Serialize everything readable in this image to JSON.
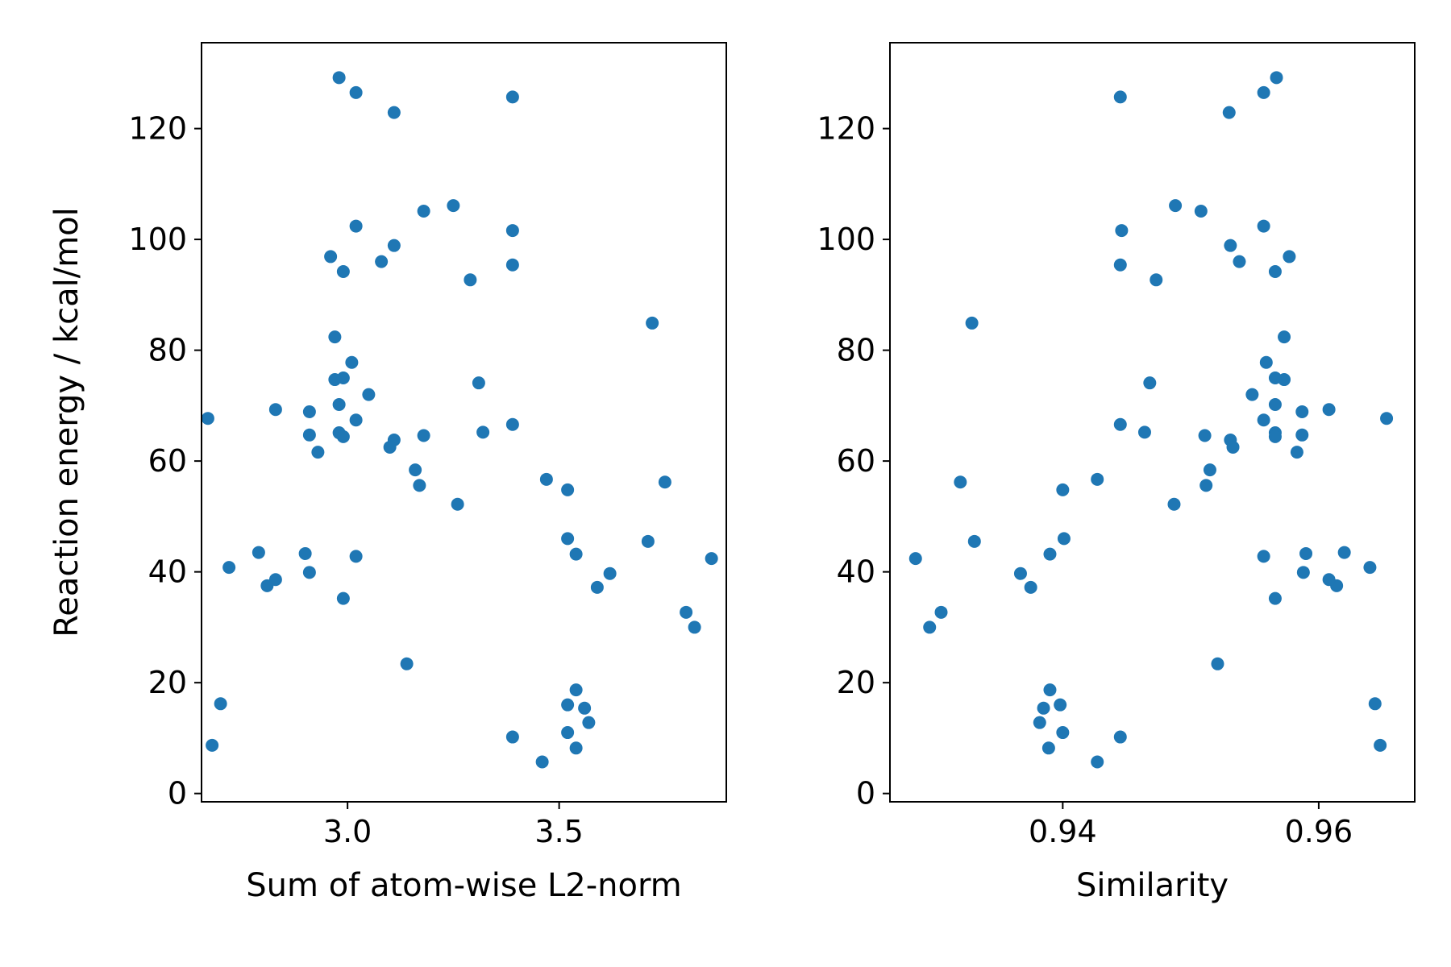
{
  "figure": {
    "background": "#ffffff",
    "point_color": "#1f77b4"
  },
  "chart_data": [
    {
      "type": "scatter",
      "title": "",
      "xlabel": "Sum of atom-wise L2-norm",
      "ylabel": "Reaction energy / kcal/mol",
      "xlim": [
        2.655,
        3.895
      ],
      "ylim": [
        -1.5,
        135.5
      ],
      "xticks": [
        3.0,
        3.5
      ],
      "xtick_labels": [
        "3.0",
        "3.5"
      ],
      "yticks": [
        0,
        20,
        40,
        60,
        80,
        100,
        120
      ],
      "ytick_labels": [
        "0",
        "20",
        "40",
        "60",
        "80",
        "100",
        "120"
      ],
      "grid": false,
      "legend": "none",
      "series": [
        {
          "points": [
            [
              2.98,
              129.2
            ],
            [
              3.02,
              126.5
            ],
            [
              3.11,
              122.9
            ],
            [
              3.39,
              125.7
            ],
            [
              3.18,
              105.1
            ],
            [
              3.25,
              106.1
            ],
            [
              3.02,
              102.4
            ],
            [
              3.39,
              101.6
            ],
            [
              3.11,
              98.9
            ],
            [
              2.96,
              96.9
            ],
            [
              3.08,
              96.0
            ],
            [
              2.99,
              94.2
            ],
            [
              3.39,
              95.4
            ],
            [
              3.29,
              92.7
            ],
            [
              3.72,
              84.9
            ],
            [
              2.97,
              82.4
            ],
            [
              3.01,
              77.8
            ],
            [
              2.97,
              74.7
            ],
            [
              2.99,
              75.0
            ],
            [
              3.31,
              74.1
            ],
            [
              3.05,
              72.0
            ],
            [
              2.98,
              70.2
            ],
            [
              2.67,
              67.7
            ],
            [
              2.83,
              69.3
            ],
            [
              2.91,
              68.9
            ],
            [
              3.02,
              67.4
            ],
            [
              3.39,
              66.6
            ],
            [
              2.91,
              64.7
            ],
            [
              2.98,
              65.1
            ],
            [
              2.99,
              64.4
            ],
            [
              3.11,
              63.8
            ],
            [
              3.18,
              64.6
            ],
            [
              3.32,
              65.2
            ],
            [
              2.93,
              61.6
            ],
            [
              3.1,
              62.5
            ],
            [
              3.16,
              58.4
            ],
            [
              3.17,
              55.6
            ],
            [
              3.47,
              56.7
            ],
            [
              3.52,
              54.8
            ],
            [
              3.75,
              56.2
            ],
            [
              3.26,
              52.2
            ],
            [
              3.52,
              46.0
            ],
            [
              3.71,
              45.5
            ],
            [
              3.54,
              43.2
            ],
            [
              2.79,
              43.5
            ],
            [
              2.9,
              43.3
            ],
            [
              3.02,
              42.8
            ],
            [
              3.86,
              42.4
            ],
            [
              2.72,
              40.8
            ],
            [
              2.91,
              39.9
            ],
            [
              3.62,
              39.7
            ],
            [
              2.81,
              37.5
            ],
            [
              2.83,
              38.6
            ],
            [
              3.59,
              37.2
            ],
            [
              2.99,
              35.2
            ],
            [
              3.8,
              32.7
            ],
            [
              3.82,
              30.0
            ],
            [
              3.14,
              23.4
            ],
            [
              3.54,
              18.7
            ],
            [
              2.7,
              16.2
            ],
            [
              3.52,
              16.0
            ],
            [
              3.56,
              15.4
            ],
            [
              3.57,
              12.8
            ],
            [
              3.52,
              11.0
            ],
            [
              3.39,
              10.2
            ],
            [
              2.68,
              8.7
            ],
            [
              3.54,
              8.2
            ],
            [
              3.46,
              5.7
            ]
          ]
        }
      ]
    },
    {
      "type": "scatter",
      "title": "",
      "xlabel": "Similarity",
      "ylabel": "",
      "xlim": [
        0.9265,
        0.9675
      ],
      "ylim": [
        -1.5,
        135.5
      ],
      "xticks": [
        0.94,
        0.96
      ],
      "xtick_labels": [
        "0.94",
        "0.96"
      ],
      "yticks": [
        0,
        20,
        40,
        60,
        80,
        100,
        120
      ],
      "ytick_labels": [
        "0",
        "20",
        "40",
        "60",
        "80",
        "100",
        "120"
      ],
      "grid": false,
      "legend": "none",
      "series": [
        {
          "points": [
            [
              0.9567,
              129.2
            ],
            [
              0.9557,
              126.5
            ],
            [
              0.953,
              122.9
            ],
            [
              0.9445,
              125.7
            ],
            [
              0.9508,
              105.1
            ],
            [
              0.9488,
              106.1
            ],
            [
              0.9557,
              102.4
            ],
            [
              0.9446,
              101.6
            ],
            [
              0.9531,
              98.9
            ],
            [
              0.9577,
              96.9
            ],
            [
              0.9538,
              96.0
            ],
            [
              0.9566,
              94.2
            ],
            [
              0.9445,
              95.4
            ],
            [
              0.9473,
              92.7
            ],
            [
              0.9329,
              84.9
            ],
            [
              0.9573,
              82.4
            ],
            [
              0.9559,
              77.8
            ],
            [
              0.9573,
              74.7
            ],
            [
              0.9566,
              75.0
            ],
            [
              0.9468,
              74.1
            ],
            [
              0.9548,
              72.0
            ],
            [
              0.9566,
              70.2
            ],
            [
              0.9653,
              67.7
            ],
            [
              0.9608,
              69.3
            ],
            [
              0.9587,
              68.9
            ],
            [
              0.9557,
              67.4
            ],
            [
              0.9445,
              66.6
            ],
            [
              0.9587,
              64.7
            ],
            [
              0.9566,
              65.1
            ],
            [
              0.9566,
              64.4
            ],
            [
              0.9531,
              63.8
            ],
            [
              0.9511,
              64.6
            ],
            [
              0.9464,
              65.2
            ],
            [
              0.9583,
              61.6
            ],
            [
              0.9533,
              62.5
            ],
            [
              0.9515,
              58.4
            ],
            [
              0.9512,
              55.6
            ],
            [
              0.9427,
              56.7
            ],
            [
              0.94,
              54.8
            ],
            [
              0.932,
              56.2
            ],
            [
              0.9487,
              52.2
            ],
            [
              0.9401,
              46.0
            ],
            [
              0.9331,
              45.5
            ],
            [
              0.939,
              43.2
            ],
            [
              0.959,
              43.3
            ],
            [
              0.962,
              43.5
            ],
            [
              0.9557,
              42.8
            ],
            [
              0.9285,
              42.4
            ],
            [
              0.964,
              40.8
            ],
            [
              0.9588,
              39.9
            ],
            [
              0.9367,
              39.7
            ],
            [
              0.9614,
              37.5
            ],
            [
              0.9608,
              38.6
            ],
            [
              0.9375,
              37.2
            ],
            [
              0.9566,
              35.2
            ],
            [
              0.9305,
              32.7
            ],
            [
              0.9296,
              30.0
            ],
            [
              0.9521,
              23.4
            ],
            [
              0.939,
              18.7
            ],
            [
              0.9644,
              16.2
            ],
            [
              0.9398,
              16.0
            ],
            [
              0.9385,
              15.4
            ],
            [
              0.9382,
              12.8
            ],
            [
              0.94,
              11.0
            ],
            [
              0.9445,
              10.2
            ],
            [
              0.9648,
              8.7
            ],
            [
              0.9389,
              8.2
            ],
            [
              0.9427,
              5.7
            ]
          ]
        }
      ]
    }
  ]
}
